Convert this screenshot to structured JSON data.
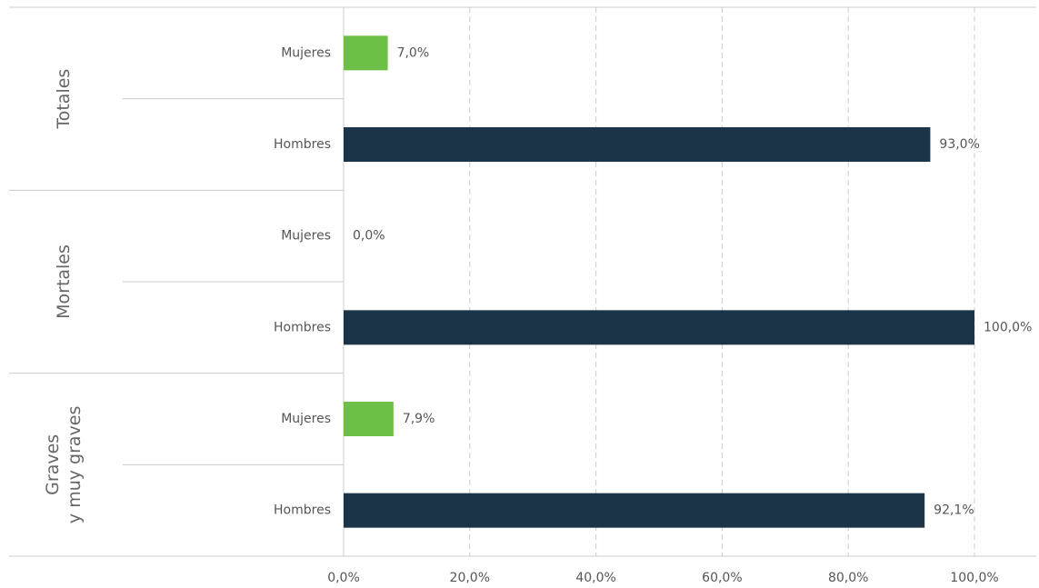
{
  "chart_data": {
    "type": "bar",
    "orientation": "horizontal",
    "groups": [
      {
        "label": [
          "Totales"
        ],
        "categories": [
          "Mujeres",
          "Hombres"
        ],
        "values": [
          7.0,
          93.0
        ],
        "value_labels": [
          "7,0%",
          "93,0%"
        ]
      },
      {
        "label": [
          "Mortales"
        ],
        "categories": [
          "Mujeres",
          "Hombres"
        ],
        "values": [
          0.0,
          100.0
        ],
        "value_labels": [
          "0,0%",
          "100,0%"
        ]
      },
      {
        "label": [
          "Graves",
          "y muy graves"
        ],
        "categories": [
          "Mujeres",
          "Hombres"
        ],
        "values": [
          7.9,
          92.1
        ],
        "value_labels": [
          "7,9%",
          "92,1%"
        ]
      }
    ],
    "colors": [
      "#6dbf45",
      "#1b3447"
    ],
    "xlim": [
      0,
      100
    ],
    "xticks": [
      {
        "value": 0,
        "label": "0,0%"
      },
      {
        "value": 20,
        "label": "20,0%"
      },
      {
        "value": 40,
        "label": "40,0%"
      },
      {
        "value": 60,
        "label": "60,0%"
      },
      {
        "value": 80,
        "label": "80,0%"
      },
      {
        "value": 100,
        "label": "100,0%"
      }
    ],
    "grid": true
  }
}
